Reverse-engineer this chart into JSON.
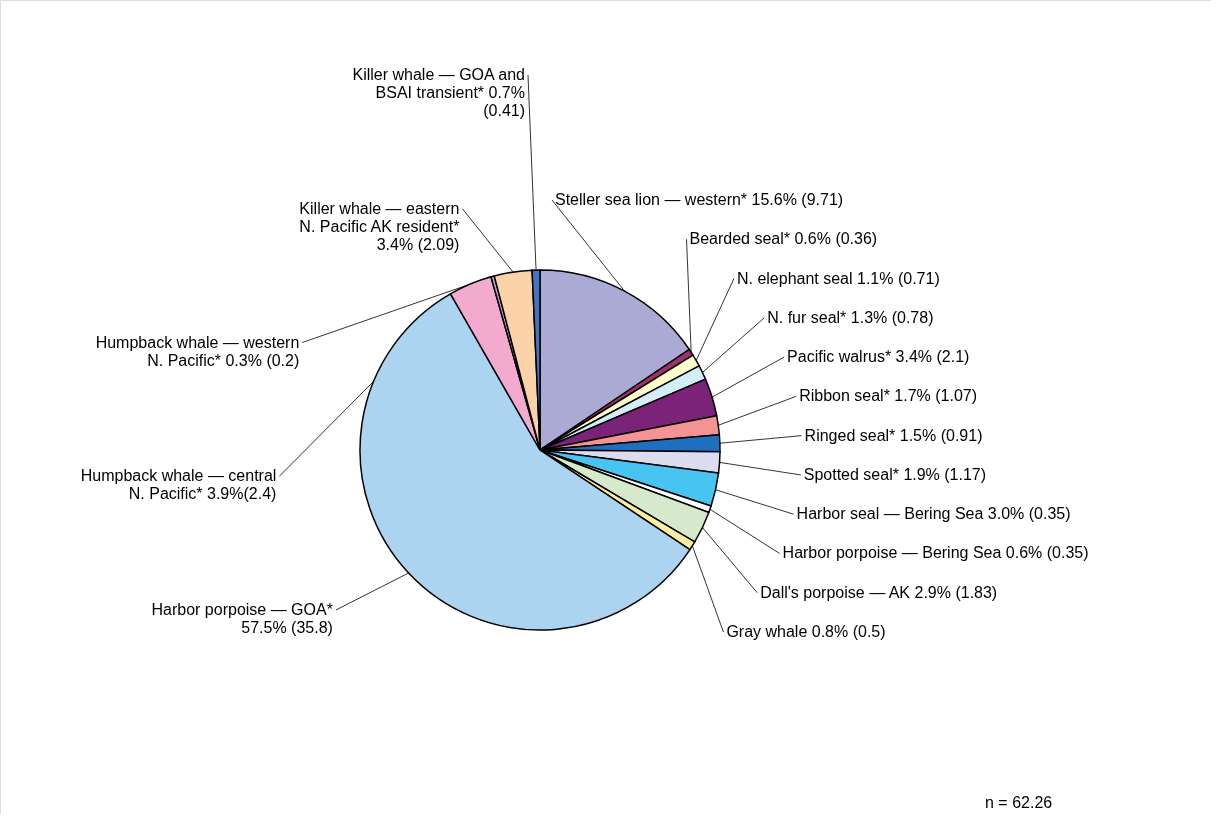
{
  "chart_data": {
    "type": "pie",
    "categories": [
      "Steller sea lion — western*",
      "Bearded seal*",
      "N. elephant seal",
      "N. fur seal*",
      "Pacific walrus*",
      "Ribbon seal*",
      "Ringed seal*",
      "Spotted seal*",
      "Harbor seal — Bering Sea",
      "Harbor porpoise — Bering Sea",
      "Dall's porpoise — AK",
      "Gray whale",
      "Harbor porpoise — GOA*",
      "Humpback whale — central N. Pacific*",
      "Humpback whale — western N. Pacific*",
      "Killer whale — eastern N. Pacific AK resident*",
      "Killer whale — GOA and BSAI transient*"
    ],
    "values": [
      15.6,
      0.6,
      1.1,
      1.3,
      3.4,
      1.7,
      1.5,
      1.9,
      3.0,
      0.6,
      2.9,
      0.8,
      57.5,
      3.9,
      0.3,
      3.4,
      0.7
    ],
    "value_labels": [
      "15.6% (9.71)",
      "0.6% (0.36)",
      "1.1% (0.71)",
      "1.3% (0.78)",
      "3.4% (2.1)",
      "1.7% (1.07)",
      "1.5% (0.91)",
      "1.9% (1.17)",
      "3.0% (0.35)",
      "0.6% (0.35)",
      "2.9% (1.83)",
      "0.8% (0.5)",
      "57.5% (35.8)",
      "3.9%(2.4)",
      "0.3% (0.2)",
      "3.4% (2.09)",
      "0.7% (0.41)"
    ],
    "colors": [
      "#aaaad5",
      "#a0306e",
      "#ffffcc",
      "#d3eef7",
      "#7b2378",
      "#f49393",
      "#1f6fbf",
      "#dcdcf0",
      "#47c4ef",
      "#ffffff",
      "#d6e9cc",
      "#ffee9e",
      "#acd3f0",
      "#f2abcf",
      "#c8a0d0",
      "#fcd3a8",
      "#4472c4"
    ],
    "annotations": [
      "n = 62.26"
    ]
  }
}
